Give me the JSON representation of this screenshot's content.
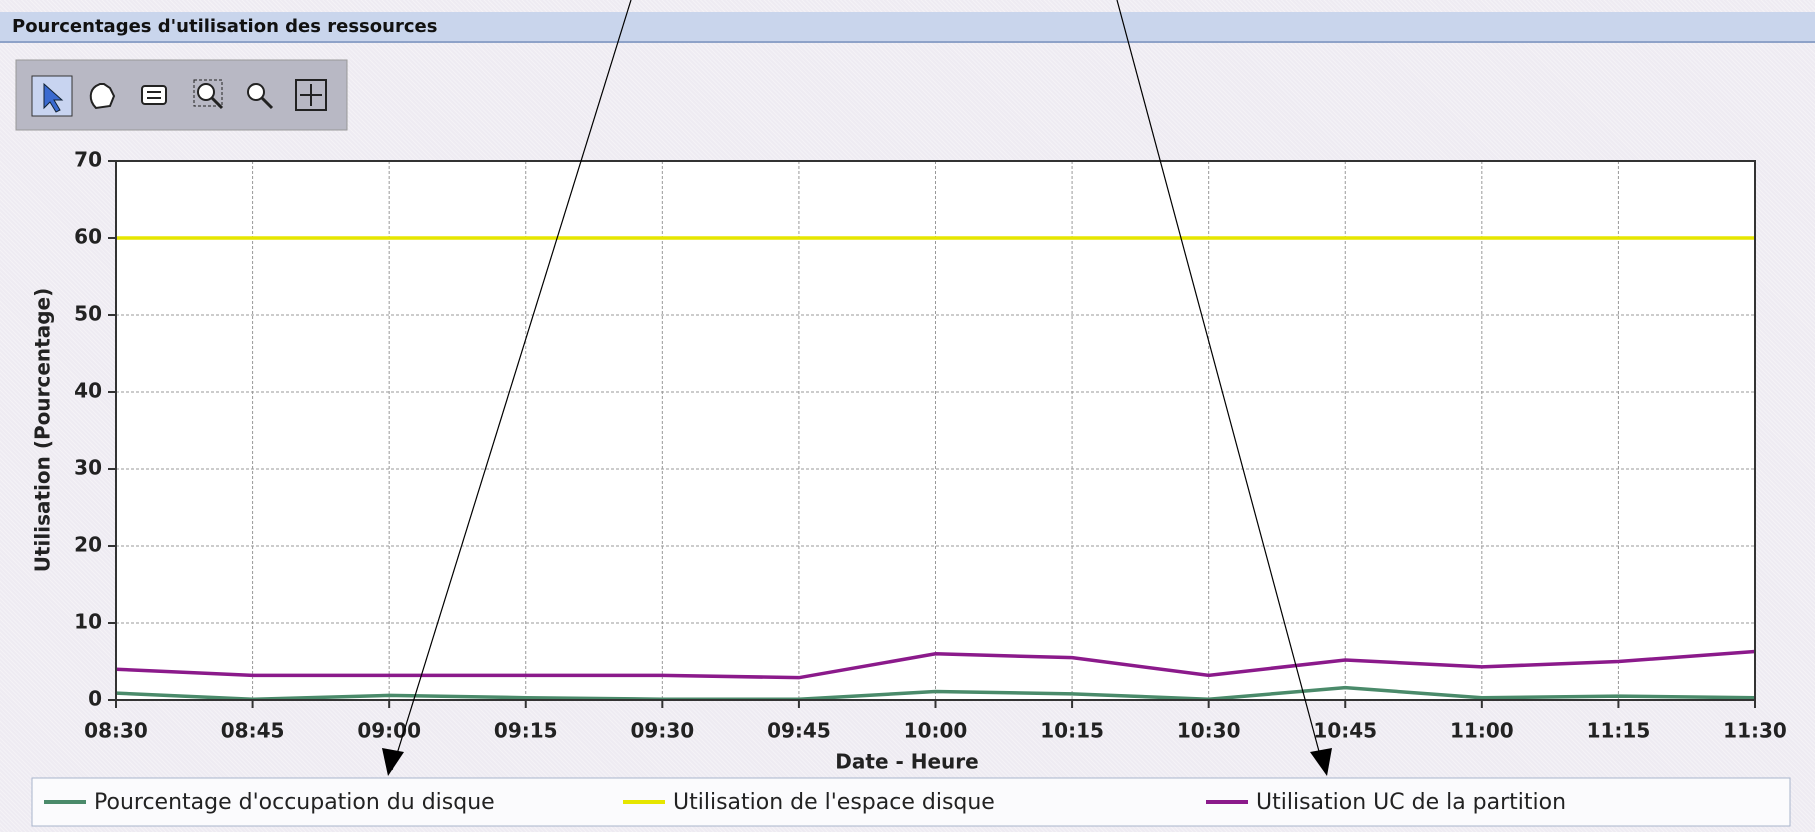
{
  "header": {
    "title": "Pourcentages d'utilisation des ressources"
  },
  "chart_data": {
    "type": "line",
    "x_label": "Date - Heure",
    "y_label": "Utilisation (Pourcentage)",
    "categories": [
      "08:30",
      "08:45",
      "09:00",
      "09:15",
      "09:30",
      "09:45",
      "10:00",
      "10:15",
      "10:30",
      "10:45",
      "11:00",
      "11:15",
      "11:30"
    ],
    "series": [
      {
        "name": "Pourcentage d'occupation du disque",
        "color": "#4a8a6a",
        "values": [
          0.9,
          0.1,
          0.6,
          0.3,
          0.1,
          0.1,
          1.1,
          0.8,
          0.1,
          1.6,
          0.3,
          0.5,
          0.3
        ]
      },
      {
        "name": "Utilisation de l'espace disque",
        "color": "#e6e600",
        "values": [
          60,
          60,
          60,
          60,
          60,
          60,
          60,
          60,
          60,
          60,
          60,
          60,
          60
        ]
      },
      {
        "name": "Utilisation UC de la partition",
        "color": "#8b1a8b",
        "values": [
          4,
          3.2,
          3.2,
          3.2,
          3.2,
          2.9,
          6,
          5.5,
          3.2,
          5.2,
          4.3,
          5,
          6.3
        ]
      }
    ],
    "ylim": [
      0,
      70
    ],
    "yticks": [
      0,
      10,
      20,
      30,
      40,
      50,
      60,
      70
    ],
    "grid": true
  }
}
